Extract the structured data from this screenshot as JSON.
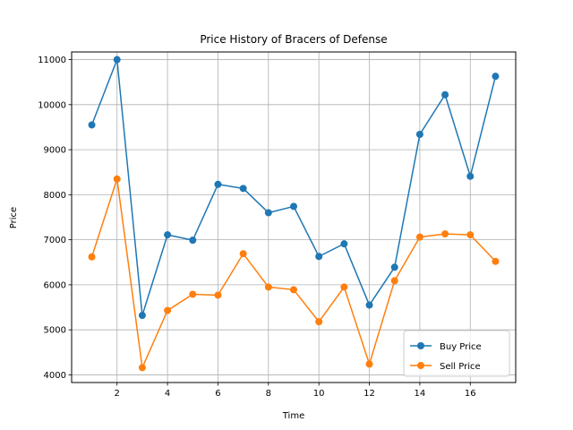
{
  "chart_data": {
    "type": "line",
    "title": "Price History of Bracers of Defense",
    "xlabel": "Time",
    "ylabel": "Price",
    "x": [
      1,
      2,
      3,
      4,
      5,
      6,
      7,
      8,
      9,
      10,
      11,
      12,
      13,
      14,
      15,
      16,
      17
    ],
    "xlim": [
      0.2,
      17.8
    ],
    "ylim": [
      3830,
      11170
    ],
    "xticks": [
      2,
      4,
      6,
      8,
      10,
      12,
      14,
      16
    ],
    "yticks": [
      4000,
      5000,
      6000,
      7000,
      8000,
      9000,
      10000,
      11000
    ],
    "grid": true,
    "legend_position": "lower-right",
    "series": [
      {
        "name": "Buy Price",
        "color": "#1f77b4",
        "values": [
          9550,
          11000,
          5320,
          7110,
          6990,
          8230,
          8140,
          7600,
          7740,
          6630,
          6910,
          5550,
          6390,
          9340,
          10220,
          8410,
          10630
        ]
      },
      {
        "name": "Sell Price",
        "color": "#ff7f0e",
        "values": [
          6620,
          8350,
          4160,
          5430,
          5790,
          5770,
          6690,
          5950,
          5890,
          5180,
          5950,
          4240,
          6090,
          7060,
          7130,
          7110,
          6520
        ]
      }
    ]
  }
}
